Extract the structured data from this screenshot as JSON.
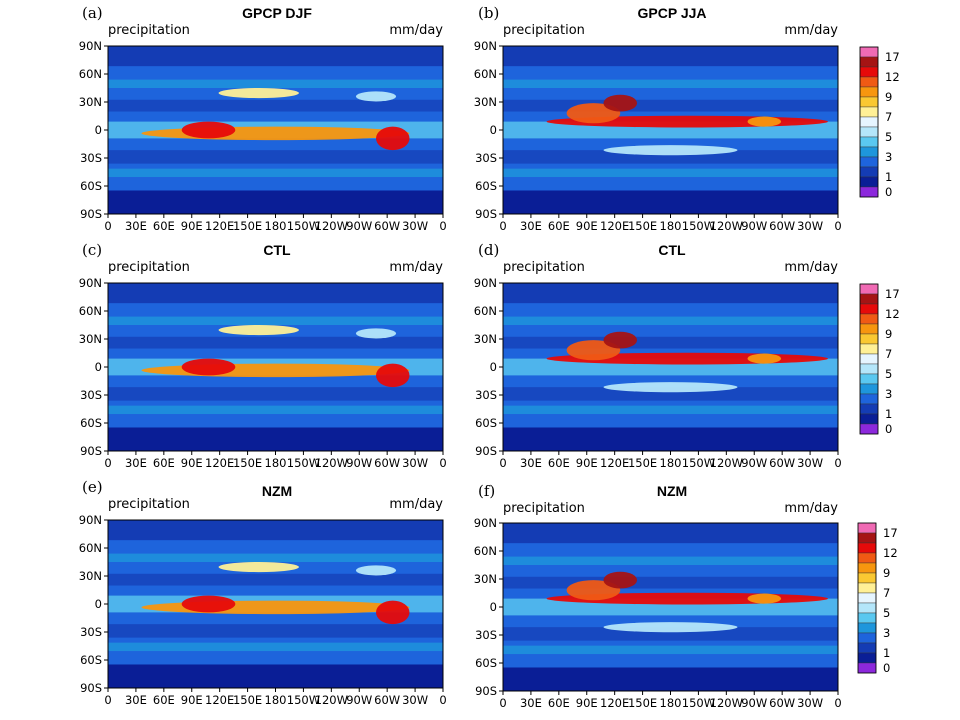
{
  "figure": {
    "variable_label": "precipitation",
    "units_label": "mm/day",
    "lat_ticks": [
      "90N",
      "60N",
      "30N",
      "0",
      "30S",
      "60S",
      "90S"
    ],
    "lon_ticks": [
      "0",
      "30E",
      "60E",
      "90E",
      "120E",
      "150E",
      "180",
      "150W",
      "120W",
      "90W",
      "60W",
      "30W",
      "0"
    ],
    "colorbar": {
      "labels": [
        "17",
        "12",
        "9",
        "7",
        "5",
        "3",
        "1",
        "0"
      ],
      "colors_top_to_bottom": [
        "#f06ab4",
        "#a51414",
        "#e60a0a",
        "#f05a14",
        "#f7960f",
        "#fac832",
        "#fff096",
        "#e6f5ff",
        "#b4e6fa",
        "#5ac8f0",
        "#1e96dc",
        "#1e64dc",
        "#143cb4",
        "#0a1e96",
        "#8c28dc"
      ]
    },
    "panels": [
      {
        "id": "a",
        "letter": "(a)",
        "title": "GPCP DJF"
      },
      {
        "id": "b",
        "letter": "(b)",
        "title": "GPCP JJA"
      },
      {
        "id": "c",
        "letter": "(c)",
        "title": "CTL"
      },
      {
        "id": "d",
        "letter": "(d)",
        "title": "CTL"
      },
      {
        "id": "e",
        "letter": "(e)",
        "title": "NZM"
      },
      {
        "id": "f",
        "letter": "(f)",
        "title": "NZM"
      }
    ]
  }
}
